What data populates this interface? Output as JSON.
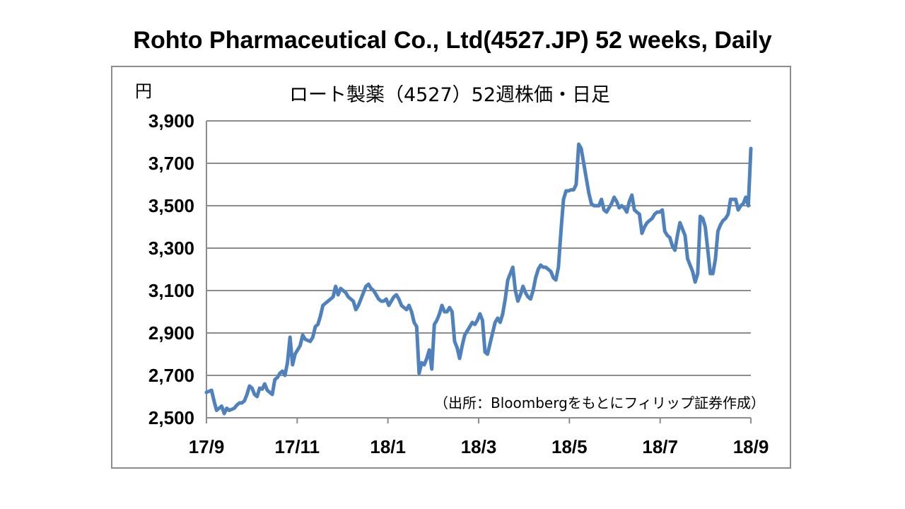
{
  "title": "Rohto Pharmaceutical Co., Ltd(4527.JP) 52 weeks, Daily",
  "chart_data": {
    "type": "line",
    "title": "ロート製薬（4527）52週株価・日足",
    "unit_label": "円",
    "source_note": "（出所：Bloombergをもとにフィリップ証券作成）",
    "ylim": [
      2500,
      3900
    ],
    "y_ticks": [
      2500,
      2700,
      2900,
      3100,
      3300,
      3500,
      3700,
      3900
    ],
    "y_tick_labels": [
      "2,500",
      "2,700",
      "2,900",
      "3,100",
      "3,300",
      "3,500",
      "3,700",
      "3,900"
    ],
    "x_tick_labels": [
      "17/9",
      "17/11",
      "18/1",
      "18/3",
      "18/5",
      "18/7",
      "18/9"
    ],
    "grid": "horizontal",
    "legend": "none",
    "line_color": "#4f81bd",
    "series": [
      {
        "values": [
          2620,
          2625,
          2630,
          2580,
          2535,
          2545,
          2555,
          2520,
          2545,
          2535,
          2540,
          2545,
          2560,
          2570,
          2570,
          2580,
          2610,
          2650,
          2640,
          2610,
          2600,
          2640,
          2635,
          2660,
          2630,
          2620,
          2610,
          2680,
          2690,
          2710,
          2720,
          2700,
          2760,
          2880,
          2750,
          2800,
          2820,
          2840,
          2890,
          2870,
          2865,
          2860,
          2880,
          2930,
          2940,
          2980,
          3030,
          3040,
          3050,
          3060,
          3070,
          3120,
          3080,
          3110,
          3100,
          3090,
          3070,
          3060,
          3050,
          3010,
          3030,
          3060,
          3090,
          3120,
          3130,
          3110,
          3100,
          3080,
          3060,
          3050,
          3050,
          3060,
          3030,
          3050,
          3070,
          3080,
          3060,
          3030,
          3020,
          3010,
          3030,
          3000,
          2950,
          2930,
          2710,
          2760,
          2750,
          2780,
          2820,
          2730,
          2940,
          2960,
          2990,
          3030,
          3000,
          3000,
          3020,
          3000,
          2860,
          2830,
          2780,
          2840,
          2890,
          2910,
          2930,
          2950,
          2940,
          2960,
          2990,
          2960,
          2810,
          2800,
          2850,
          2900,
          2950,
          2970,
          2950,
          2990,
          3060,
          3150,
          3180,
          3210,
          3100,
          3050,
          3080,
          3120,
          3090,
          3070,
          3060,
          3100,
          3160,
          3200,
          3220,
          3210,
          3210,
          3200,
          3190,
          3160,
          3150,
          3210,
          3380,
          3530,
          3570,
          3570,
          3575,
          3575,
          3600,
          3790,
          3770,
          3700,
          3630,
          3560,
          3510,
          3500,
          3500,
          3500,
          3530,
          3480,
          3470,
          3490,
          3510,
          3540,
          3520,
          3490,
          3500,
          3490,
          3470,
          3520,
          3550,
          3480,
          3470,
          3460,
          3370,
          3400,
          3420,
          3430,
          3440,
          3460,
          3470,
          3470,
          3480,
          3380,
          3360,
          3350,
          3310,
          3290,
          3360,
          3420,
          3390,
          3360,
          3250,
          3220,
          3190,
          3140,
          3180,
          3450,
          3440,
          3400,
          3290,
          3180,
          3180,
          3250,
          3380,
          3410,
          3430,
          3440,
          3460,
          3530,
          3530,
          3530,
          3480,
          3500,
          3510,
          3540,
          3500,
          3770
        ]
      }
    ]
  }
}
